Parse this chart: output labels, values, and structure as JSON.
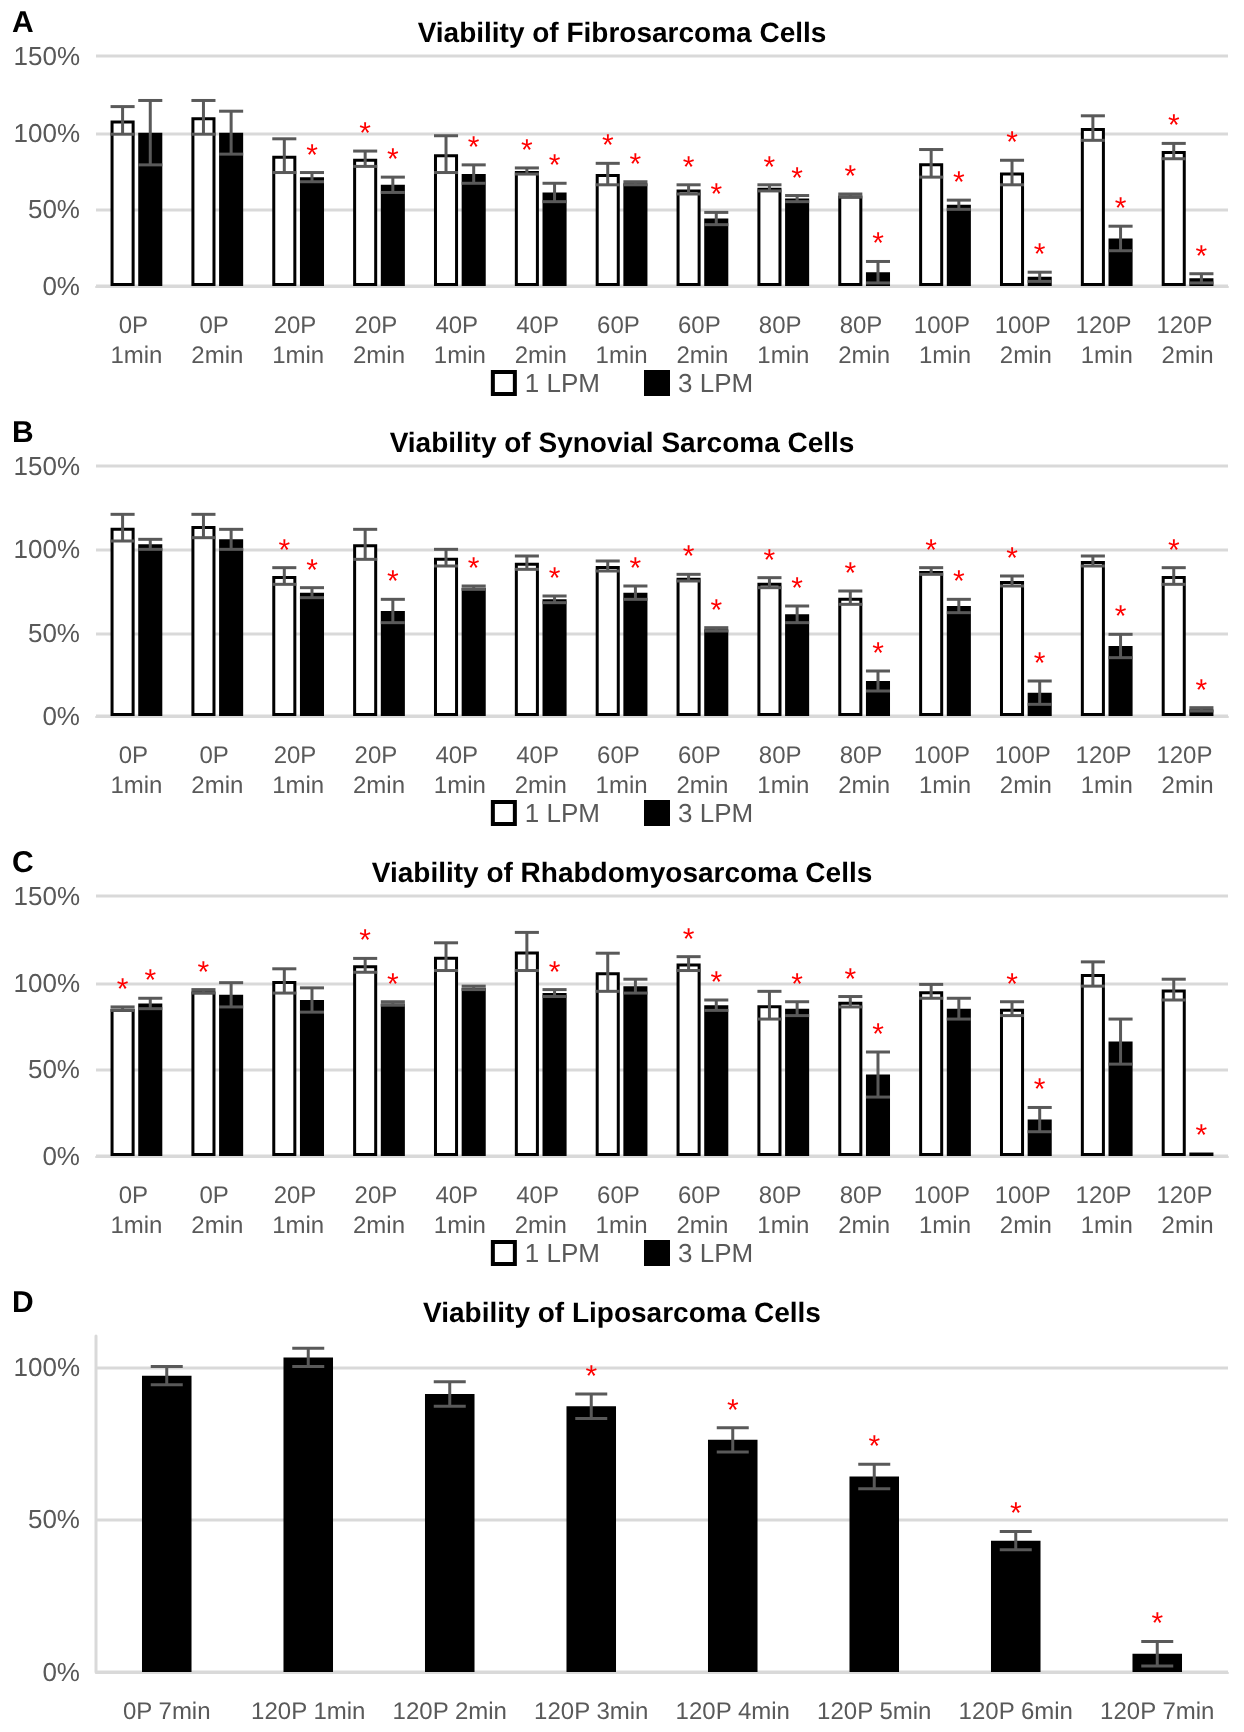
{
  "chart_data": [
    {
      "type": "bar",
      "title": "Viability of Fibrosarcoma Cells",
      "annotations": [
        "A"
      ],
      "categories": [
        "0P 1min",
        "0P 2min",
        "20P 1min",
        "20P 2min",
        "40P 1min",
        "40P 2min",
        "60P 1min",
        "60P 2min",
        "80P 1min",
        "80P 2min",
        "100P 1min",
        "100P 2min",
        "120P 1min",
        "120P 2min"
      ],
      "series": [
        {
          "name": "1 LPM",
          "color": "#ffffff",
          "values": [
            108,
            110,
            85,
            83,
            86,
            75,
            73,
            63,
            64,
            59,
            80,
            74,
            103,
            88
          ],
          "errors": [
            9,
            11,
            11,
            5,
            12,
            2,
            7,
            3,
            2,
            1,
            9,
            8,
            8,
            5
          ],
          "value_labels": [
            null,
            null,
            null,
            "*",
            null,
            "*",
            "*",
            "*",
            "*",
            "*",
            null,
            "*",
            null,
            "*"
          ]
        },
        {
          "name": "3 LPM",
          "color": "#000000",
          "values": [
            100,
            100,
            71,
            66,
            73,
            61,
            67,
            44,
            57,
            9,
            53,
            6,
            31,
            5
          ],
          "errors": [
            21,
            14,
            3,
            5,
            6,
            6,
            1,
            4,
            2,
            7,
            3,
            3,
            8,
            3
          ],
          "value_labels": [
            null,
            null,
            "*",
            "*",
            "*",
            "*",
            "*",
            "*",
            "*",
            "*",
            "*",
            "*",
            "*",
            "*"
          ]
        }
      ],
      "ylim": [
        0,
        150
      ],
      "yticks": [
        {
          "value": 0,
          "label": "0%"
        },
        {
          "value": 50,
          "label": "50%"
        },
        {
          "value": 100,
          "label": "100%"
        },
        {
          "value": 150,
          "label": "150%"
        }
      ],
      "grid": "y",
      "legend": "bottom"
    },
    {
      "type": "bar",
      "title": "Viability of Synovial Sarcoma Cells",
      "annotations": [
        "B"
      ],
      "categories": [
        "0P 1min",
        "0P 2min",
        "20P 1min",
        "20P 2min",
        "40P 1min",
        "40P 2min",
        "60P 1min",
        "60P 2min",
        "80P 1min",
        "80P 2min",
        "100P 1min",
        "100P 2min",
        "120P 1min",
        "120P 2min"
      ],
      "series": [
        {
          "name": "1 LPM",
          "color": "#ffffff",
          "values": [
            113,
            114,
            84,
            103,
            95,
            92,
            90,
            83,
            80,
            71,
            87,
            81,
            93,
            84
          ],
          "errors": [
            8,
            7,
            5,
            9,
            5,
            4,
            3,
            2,
            3,
            4,
            2,
            3,
            3,
            5
          ],
          "value_labels": [
            null,
            null,
            "*",
            null,
            null,
            null,
            null,
            "*",
            "*",
            "*",
            "*",
            "*",
            null,
            "*"
          ]
        },
        {
          "name": "3 LPM",
          "color": "#000000",
          "values": [
            103,
            106,
            74,
            63,
            77,
            70,
            74,
            52,
            61,
            21,
            66,
            14,
            42,
            4
          ],
          "errors": [
            3,
            6,
            3,
            7,
            1,
            2,
            4,
            1,
            5,
            6,
            4,
            7,
            7,
            1
          ],
          "value_labels": [
            null,
            null,
            "*",
            "*",
            "*",
            "*",
            "*",
            "*",
            "*",
            "*",
            "*",
            "*",
            "*",
            "*"
          ]
        }
      ],
      "ylim": [
        0,
        150
      ],
      "yticks": [
        {
          "value": 0,
          "label": "0%"
        },
        {
          "value": 50,
          "label": "50%"
        },
        {
          "value": 100,
          "label": "100%"
        },
        {
          "value": 150,
          "label": "150%"
        }
      ],
      "grid": "y",
      "legend": "bottom"
    },
    {
      "type": "bar",
      "title": "Viability of Rhabdomyosarcoma Cells",
      "annotations": [
        "C"
      ],
      "categories": [
        "0P 1min",
        "0P 2min",
        "20P 1min",
        "20P 2min",
        "40P 1min",
        "40P 2min",
        "60P 1min",
        "60P 2min",
        "80P 1min",
        "80P 2min",
        "100P 1min",
        "100P 2min",
        "120P 1min",
        "120P 2min"
      ],
      "series": [
        {
          "name": "1 LPM",
          "color": "#ffffff",
          "values": [
            85,
            95,
            101,
            110,
            115,
            118,
            106,
            111,
            87,
            89,
            95,
            85,
            105,
            96
          ],
          "errors": [
            1,
            1,
            7,
            4,
            8,
            11,
            11,
            4,
            8,
            3,
            4,
            4,
            7,
            6
          ],
          "value_labels": [
            "*",
            "*",
            null,
            "*",
            null,
            null,
            null,
            "*",
            null,
            "*",
            null,
            "*",
            null,
            null
          ]
        },
        {
          "name": "3 LPM",
          "color": "#000000",
          "values": [
            88,
            93,
            90,
            88,
            97,
            94,
            98,
            87,
            85,
            47,
            85,
            21,
            66,
            2
          ],
          "errors": [
            3,
            7,
            7,
            1,
            1,
            2,
            4,
            3,
            4,
            13,
            6,
            7,
            13,
            null
          ],
          "value_labels": [
            "*",
            null,
            null,
            "*",
            null,
            "*",
            null,
            "*",
            "*",
            "*",
            null,
            "*",
            null,
            "*"
          ]
        }
      ],
      "ylim": [
        0,
        150
      ],
      "yticks": [
        {
          "value": 0,
          "label": "0%"
        },
        {
          "value": 50,
          "label": "50%"
        },
        {
          "value": 100,
          "label": "100%"
        },
        {
          "value": 150,
          "label": "150%"
        }
      ],
      "grid": "y",
      "legend": "bottom"
    },
    {
      "type": "bar",
      "title": "Viability of Liposarcoma Cells",
      "annotations": [
        "D"
      ],
      "categories": [
        "0P 7min",
        "120P 1min",
        "120P 2min",
        "120P 3min",
        "120P 4min",
        "120P 5min",
        "120P 6min",
        "120P 7min"
      ],
      "series": [
        {
          "color": "#000000",
          "values": [
            97,
            103,
            91,
            87,
            76,
            64,
            43,
            6
          ],
          "errors": [
            3,
            3,
            4,
            4,
            4,
            4,
            3,
            4
          ],
          "value_labels": [
            null,
            null,
            null,
            "*",
            "*",
            "*",
            "*",
            "*"
          ]
        }
      ],
      "ylim": [
        0,
        110
      ],
      "yticks": [
        {
          "value": 0,
          "label": "0%"
        },
        {
          "value": 50,
          "label": "50%"
        },
        {
          "value": 100,
          "label": "100%"
        }
      ],
      "grid": "y"
    }
  ]
}
